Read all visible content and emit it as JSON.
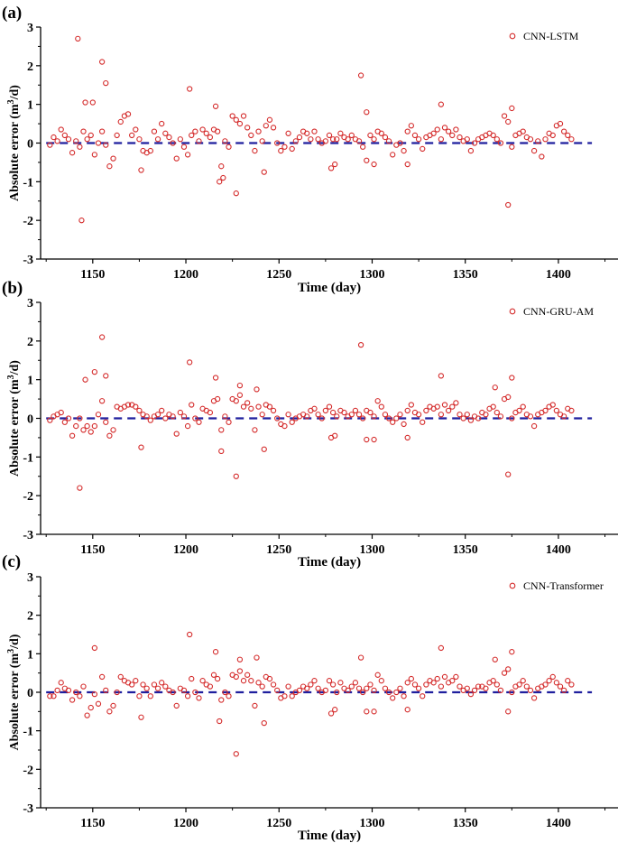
{
  "chart_data": [
    {
      "panel_label": "(a)",
      "type": "scatter",
      "title": "",
      "xlabel": "Time (day)",
      "ylabel_main": "Absolute error (m",
      "ylabel_sup": "3",
      "ylabel_tail": "/d)",
      "xlim": [
        1122,
        1432
      ],
      "ylim": [
        -3,
        3
      ],
      "xticks": [
        "1150",
        "1200",
        "1250",
        "1300",
        "1350",
        "1400"
      ],
      "yticks": [
        "-3",
        "-2",
        "-1",
        "0",
        "1",
        "2",
        "3"
      ],
      "legend": {
        "label": "CNN-LSTM",
        "position": "top-right"
      },
      "reference_line": 0,
      "series": [
        {
          "name": "CNN-LSTM",
          "x": [
            1127,
            1129,
            1131,
            1133,
            1135,
            1137,
            1139,
            1141,
            1143,
            1145,
            1147,
            1149,
            1151,
            1153,
            1155,
            1157,
            1159,
            1161,
            1163,
            1165,
            1167,
            1169,
            1171,
            1173,
            1175,
            1177,
            1179,
            1181,
            1183,
            1185,
            1187,
            1189,
            1191,
            1193,
            1195,
            1197,
            1199,
            1201,
            1203,
            1205,
            1207,
            1209,
            1211,
            1213,
            1215,
            1217,
            1219,
            1221,
            1223,
            1225,
            1227,
            1229,
            1231,
            1233,
            1235,
            1237,
            1239,
            1241,
            1243,
            1245,
            1247,
            1249,
            1251,
            1253,
            1255,
            1257,
            1259,
            1261,
            1263,
            1265,
            1267,
            1269,
            1271,
            1273,
            1275,
            1277,
            1279,
            1281,
            1283,
            1285,
            1287,
            1289,
            1291,
            1293,
            1295,
            1297,
            1299,
            1301,
            1303,
            1305,
            1307,
            1309,
            1311,
            1313,
            1315,
            1317,
            1319,
            1321,
            1323,
            1325,
            1327,
            1329,
            1331,
            1333,
            1335,
            1337,
            1339,
            1341,
            1343,
            1345,
            1347,
            1349,
            1351,
            1353,
            1355,
            1357,
            1359,
            1361,
            1363,
            1365,
            1367,
            1369,
            1371,
            1373,
            1375,
            1377,
            1379,
            1381,
            1383,
            1385,
            1387,
            1389,
            1391,
            1393,
            1395,
            1397,
            1399,
            1401,
            1403,
            1405,
            1407,
            1142,
            1144,
            1146,
            1150,
            1155,
            1157,
            1176,
            1202,
            1216,
            1218,
            1220,
            1227,
            1242,
            1278,
            1280,
            1294,
            1297,
            1301,
            1319,
            1337,
            1373,
            1375
          ],
          "y": [
            -0.05,
            0.15,
            0.05,
            0.35,
            0.2,
            0.1,
            -0.25,
            0.05,
            -0.1,
            0.3,
            0.1,
            0.2,
            -0.3,
            0.0,
            0.3,
            -0.05,
            -0.6,
            -0.4,
            0.2,
            0.55,
            0.7,
            0.75,
            0.2,
            0.35,
            0.1,
            -0.2,
            -0.25,
            -0.2,
            0.3,
            0.1,
            0.5,
            0.25,
            0.15,
            0.0,
            -0.4,
            0.1,
            -0.1,
            -0.3,
            0.2,
            0.3,
            0.05,
            0.35,
            0.25,
            0.15,
            0.35,
            0.3,
            -0.6,
            0.05,
            -0.1,
            0.7,
            0.6,
            0.5,
            0.7,
            0.4,
            0.2,
            -0.2,
            0.3,
            0.05,
            0.45,
            0.6,
            0.4,
            0.0,
            -0.2,
            -0.1,
            0.25,
            -0.15,
            0.05,
            0.15,
            0.3,
            0.25,
            0.1,
            0.3,
            0.1,
            0.0,
            0.05,
            0.2,
            0.1,
            0.1,
            0.25,
            0.15,
            0.1,
            0.2,
            0.1,
            0.05,
            -0.1,
            0.8,
            0.2,
            0.1,
            0.3,
            0.25,
            0.15,
            0.05,
            -0.3,
            -0.05,
            0.0,
            -0.2,
            0.3,
            0.45,
            0.2,
            0.1,
            -0.15,
            0.15,
            0.2,
            0.25,
            0.35,
            0.1,
            0.4,
            0.3,
            0.2,
            0.35,
            0.15,
            0.05,
            0.1,
            -0.2,
            0.0,
            0.1,
            0.15,
            0.2,
            0.25,
            0.2,
            0.1,
            0.0,
            0.7,
            0.55,
            -0.1,
            0.2,
            0.25,
            0.3,
            0.15,
            0.1,
            -0.2,
            0.05,
            -0.35,
            0.1,
            0.25,
            0.2,
            0.45,
            0.5,
            0.3,
            0.2,
            0.1,
            2.7,
            -2.0,
            1.05,
            1.05,
            2.1,
            1.55,
            -0.7,
            1.4,
            0.95,
            -1.0,
            -0.9,
            -1.3,
            -0.75,
            -0.65,
            -0.55,
            1.75,
            -0.45,
            -0.55,
            -0.55,
            1.0,
            -1.6,
            0.9
          ]
        }
      ]
    },
    {
      "panel_label": "(b)",
      "type": "scatter",
      "title": "",
      "xlabel": "Time (day)",
      "ylabel_main": "Absolute error (m",
      "ylabel_sup": "3",
      "ylabel_tail": "/d)",
      "xlim": [
        1122,
        1432
      ],
      "ylim": [
        -3,
        3
      ],
      "xticks": [
        "1150",
        "1200",
        "1250",
        "1300",
        "1350",
        "1400"
      ],
      "yticks": [
        "-3",
        "-2",
        "-1",
        "0",
        "1",
        "2",
        "3"
      ],
      "legend": {
        "label": "CNN-GRU-AM",
        "position": "top-right"
      },
      "reference_line": 0,
      "series": [
        {
          "name": "CNN-GRU-AM",
          "x": [
            1127,
            1129,
            1131,
            1133,
            1135,
            1137,
            1139,
            1141,
            1143,
            1145,
            1147,
            1149,
            1151,
            1153,
            1155,
            1157,
            1159,
            1161,
            1163,
            1165,
            1167,
            1169,
            1171,
            1173,
            1175,
            1177,
            1179,
            1181,
            1183,
            1185,
            1187,
            1189,
            1191,
            1193,
            1195,
            1197,
            1199,
            1201,
            1203,
            1205,
            1207,
            1209,
            1211,
            1213,
            1215,
            1217,
            1219,
            1221,
            1223,
            1225,
            1227,
            1229,
            1231,
            1233,
            1235,
            1237,
            1239,
            1241,
            1243,
            1245,
            1247,
            1249,
            1251,
            1253,
            1255,
            1257,
            1259,
            1261,
            1263,
            1265,
            1267,
            1269,
            1271,
            1273,
            1275,
            1277,
            1279,
            1281,
            1283,
            1285,
            1287,
            1289,
            1291,
            1293,
            1295,
            1297,
            1299,
            1301,
            1303,
            1305,
            1307,
            1309,
            1311,
            1313,
            1315,
            1317,
            1319,
            1321,
            1323,
            1325,
            1327,
            1329,
            1331,
            1333,
            1335,
            1337,
            1339,
            1341,
            1343,
            1345,
            1347,
            1349,
            1351,
            1353,
            1355,
            1357,
            1359,
            1361,
            1363,
            1365,
            1367,
            1369,
            1371,
            1373,
            1375,
            1377,
            1379,
            1381,
            1383,
            1385,
            1387,
            1389,
            1391,
            1393,
            1395,
            1397,
            1399,
            1401,
            1403,
            1405,
            1407,
            1143,
            1146,
            1151,
            1155,
            1157,
            1176,
            1202,
            1216,
            1219,
            1227,
            1229,
            1238,
            1242,
            1278,
            1280,
            1294,
            1297,
            1301,
            1319,
            1337,
            1373,
            1375,
            1366
          ],
          "y": [
            -0.05,
            0.05,
            0.1,
            0.15,
            -0.1,
            0.0,
            -0.45,
            -0.2,
            0.0,
            -0.3,
            -0.2,
            -0.35,
            -0.2,
            0.1,
            0.45,
            -0.1,
            -0.45,
            -0.3,
            0.3,
            0.25,
            0.3,
            0.35,
            0.35,
            0.3,
            0.2,
            0.1,
            0.05,
            -0.05,
            0.05,
            0.1,
            0.2,
            0.0,
            0.1,
            0.05,
            -0.4,
            0.15,
            0.05,
            -0.2,
            0.35,
            0.0,
            -0.1,
            0.25,
            0.2,
            0.15,
            0.45,
            0.5,
            -0.3,
            0.05,
            -0.1,
            0.5,
            0.45,
            0.6,
            0.3,
            0.4,
            0.25,
            -0.3,
            0.3,
            0.1,
            0.35,
            0.3,
            0.2,
            0.0,
            -0.15,
            -0.2,
            0.1,
            -0.1,
            0.0,
            0.05,
            0.1,
            0.05,
            0.2,
            0.25,
            0.1,
            0.0,
            0.2,
            0.3,
            0.15,
            0.05,
            0.2,
            0.15,
            0.05,
            0.1,
            0.2,
            0.1,
            0.0,
            0.2,
            0.15,
            0.05,
            0.45,
            0.3,
            0.1,
            0.0,
            -0.1,
            0.0,
            0.1,
            -0.15,
            0.2,
            0.35,
            0.15,
            0.1,
            -0.1,
            0.2,
            0.3,
            0.25,
            0.3,
            0.1,
            0.35,
            0.2,
            0.3,
            0.4,
            0.1,
            0.0,
            0.1,
            -0.05,
            0.05,
            0.0,
            0.15,
            0.1,
            0.25,
            0.3,
            0.15,
            0.05,
            0.5,
            0.55,
            0.0,
            0.15,
            0.2,
            0.3,
            0.1,
            0.05,
            -0.2,
            0.1,
            0.15,
            0.2,
            0.3,
            0.35,
            0.2,
            0.1,
            0.05,
            0.25,
            0.2,
            -1.8,
            1.0,
            1.2,
            2.1,
            1.1,
            -0.75,
            1.45,
            1.05,
            -0.85,
            -1.5,
            0.85,
            0.75,
            -0.8,
            -0.5,
            -0.45,
            1.9,
            -0.55,
            -0.55,
            -0.5,
            1.1,
            -1.45,
            1.05,
            0.8
          ]
        }
      ]
    },
    {
      "panel_label": "(c)",
      "type": "scatter",
      "title": "",
      "xlabel": "Time (day)",
      "ylabel_main": "Absolute error (m",
      "ylabel_sup": "3",
      "ylabel_tail": "/d)",
      "xlim": [
        1122,
        1432
      ],
      "ylim": [
        -3,
        3
      ],
      "xticks": [
        "1150",
        "1200",
        "1250",
        "1300",
        "1350",
        "1400"
      ],
      "yticks": [
        "-3",
        "-2",
        "-1",
        "0",
        "1",
        "2",
        "3"
      ],
      "legend": {
        "label": "CNN-Transformer",
        "position": "top-right"
      },
      "reference_line": 0,
      "series": [
        {
          "name": "CNN-Transformer",
          "x": [
            1127,
            1129,
            1131,
            1133,
            1135,
            1137,
            1139,
            1141,
            1143,
            1145,
            1147,
            1149,
            1151,
            1153,
            1155,
            1157,
            1159,
            1161,
            1163,
            1165,
            1167,
            1169,
            1171,
            1173,
            1175,
            1177,
            1179,
            1181,
            1183,
            1185,
            1187,
            1189,
            1191,
            1193,
            1195,
            1197,
            1199,
            1201,
            1203,
            1205,
            1207,
            1209,
            1211,
            1213,
            1215,
            1217,
            1219,
            1221,
            1223,
            1225,
            1227,
            1229,
            1231,
            1233,
            1235,
            1237,
            1239,
            1241,
            1243,
            1245,
            1247,
            1249,
            1251,
            1253,
            1255,
            1257,
            1259,
            1261,
            1263,
            1265,
            1267,
            1269,
            1271,
            1273,
            1275,
            1277,
            1279,
            1281,
            1283,
            1285,
            1287,
            1289,
            1291,
            1293,
            1295,
            1297,
            1299,
            1301,
            1303,
            1305,
            1307,
            1309,
            1311,
            1313,
            1315,
            1317,
            1319,
            1321,
            1323,
            1325,
            1327,
            1329,
            1331,
            1333,
            1335,
            1337,
            1339,
            1341,
            1343,
            1345,
            1347,
            1349,
            1351,
            1353,
            1355,
            1357,
            1359,
            1361,
            1363,
            1365,
            1367,
            1369,
            1371,
            1373,
            1375,
            1377,
            1379,
            1381,
            1383,
            1385,
            1387,
            1389,
            1391,
            1393,
            1395,
            1397,
            1399,
            1401,
            1403,
            1405,
            1407,
            1151,
            1176,
            1202,
            1216,
            1218,
            1227,
            1229,
            1238,
            1242,
            1278,
            1280,
            1294,
            1297,
            1301,
            1319,
            1337,
            1366,
            1373,
            1375
          ],
          "y": [
            -0.1,
            -0.1,
            0.05,
            0.25,
            0.1,
            0.05,
            -0.2,
            0.0,
            -0.1,
            0.15,
            -0.6,
            -0.4,
            -0.05,
            -0.3,
            0.4,
            0.05,
            -0.5,
            -0.35,
            0.0,
            0.4,
            0.3,
            0.25,
            0.2,
            0.3,
            -0.1,
            0.2,
            0.1,
            -0.1,
            0.2,
            0.1,
            0.25,
            0.15,
            0.05,
            0.0,
            -0.35,
            0.1,
            0.05,
            -0.1,
            0.35,
            0.0,
            -0.15,
            0.3,
            0.2,
            0.15,
            0.45,
            0.35,
            -0.2,
            0.0,
            -0.1,
            0.45,
            0.4,
            0.55,
            0.3,
            0.45,
            0.3,
            -0.35,
            0.25,
            0.15,
            0.4,
            0.35,
            0.2,
            0.05,
            -0.15,
            -0.1,
            0.15,
            -0.1,
            0.0,
            0.05,
            0.15,
            0.1,
            0.2,
            0.3,
            0.1,
            0.0,
            0.05,
            0.3,
            0.2,
            0.0,
            0.25,
            0.1,
            0.05,
            0.15,
            0.25,
            0.1,
            0.0,
            0.1,
            0.2,
            0.05,
            0.45,
            0.3,
            0.1,
            0.0,
            -0.15,
            0.0,
            0.1,
            -0.1,
            0.25,
            0.35,
            0.2,
            0.1,
            -0.1,
            0.2,
            0.3,
            0.25,
            0.35,
            0.15,
            0.4,
            0.25,
            0.3,
            0.4,
            0.15,
            0.05,
            0.1,
            -0.05,
            0.05,
            0.15,
            0.15,
            0.1,
            0.25,
            0.3,
            0.2,
            0.05,
            0.5,
            0.6,
            0.0,
            0.15,
            0.2,
            0.3,
            0.15,
            0.05,
            -0.15,
            0.1,
            0.15,
            0.2,
            0.3,
            0.4,
            0.25,
            0.15,
            0.05,
            0.3,
            0.2,
            1.15,
            -0.65,
            1.5,
            1.05,
            -0.75,
            -1.6,
            0.85,
            0.9,
            -0.8,
            -0.55,
            -0.45,
            0.9,
            -0.5,
            -0.5,
            -0.45,
            1.15,
            0.85,
            -0.5,
            1.05
          ]
        }
      ]
    }
  ]
}
